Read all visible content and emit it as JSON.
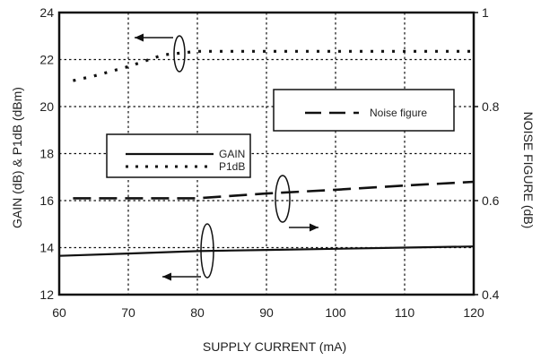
{
  "chart_data": {
    "type": "line",
    "title": "",
    "xlabel": "SUPPLY CURRENT (mA)",
    "ylabel_left": "GAIN (dB) & P1dB (dBm)",
    "ylabel_right": "NOISE FIGURE (dB)",
    "xlim": [
      60,
      120
    ],
    "ylim_left": [
      12,
      24
    ],
    "ylim_right": [
      0.4,
      1.0
    ],
    "x_ticks": [
      "60",
      "70",
      "80",
      "90",
      "100",
      "110",
      "120"
    ],
    "y_left_ticks": [
      "12",
      "14",
      "16",
      "18",
      "20",
      "22",
      "24"
    ],
    "y_right_ticks": [
      "0.4",
      "0.6",
      "0.8",
      "1"
    ],
    "grid": true,
    "series": [
      {
        "name": "GAIN",
        "axis": "left",
        "style": "solid",
        "x": [
          60,
          70,
          80,
          90,
          100,
          110,
          120
        ],
        "y": [
          13.65,
          13.75,
          13.85,
          13.9,
          13.95,
          14.0,
          14.05
        ]
      },
      {
        "name": "P1dB",
        "axis": "left",
        "style": "dotted",
        "x": [
          62,
          65,
          70,
          75,
          80,
          90,
          100,
          110,
          120
        ],
        "y": [
          21.1,
          21.3,
          21.7,
          22.2,
          22.35,
          22.35,
          22.35,
          22.35,
          22.35
        ]
      },
      {
        "name": "Noise figure",
        "axis": "right",
        "style": "dashed",
        "x": [
          62,
          70,
          80,
          90,
          100,
          110,
          120
        ],
        "y": [
          0.605,
          0.605,
          0.605,
          0.615,
          0.623,
          0.632,
          0.64
        ]
      }
    ],
    "legends": [
      {
        "entries": [
          "GAIN",
          "P1dB"
        ],
        "placement": "center-left"
      },
      {
        "entries": [
          "Noise figure"
        ],
        "placement": "upper-right"
      }
    ],
    "colors": {
      "line": "#111111",
      "grid": "#111111",
      "background": "#ffffff"
    }
  }
}
